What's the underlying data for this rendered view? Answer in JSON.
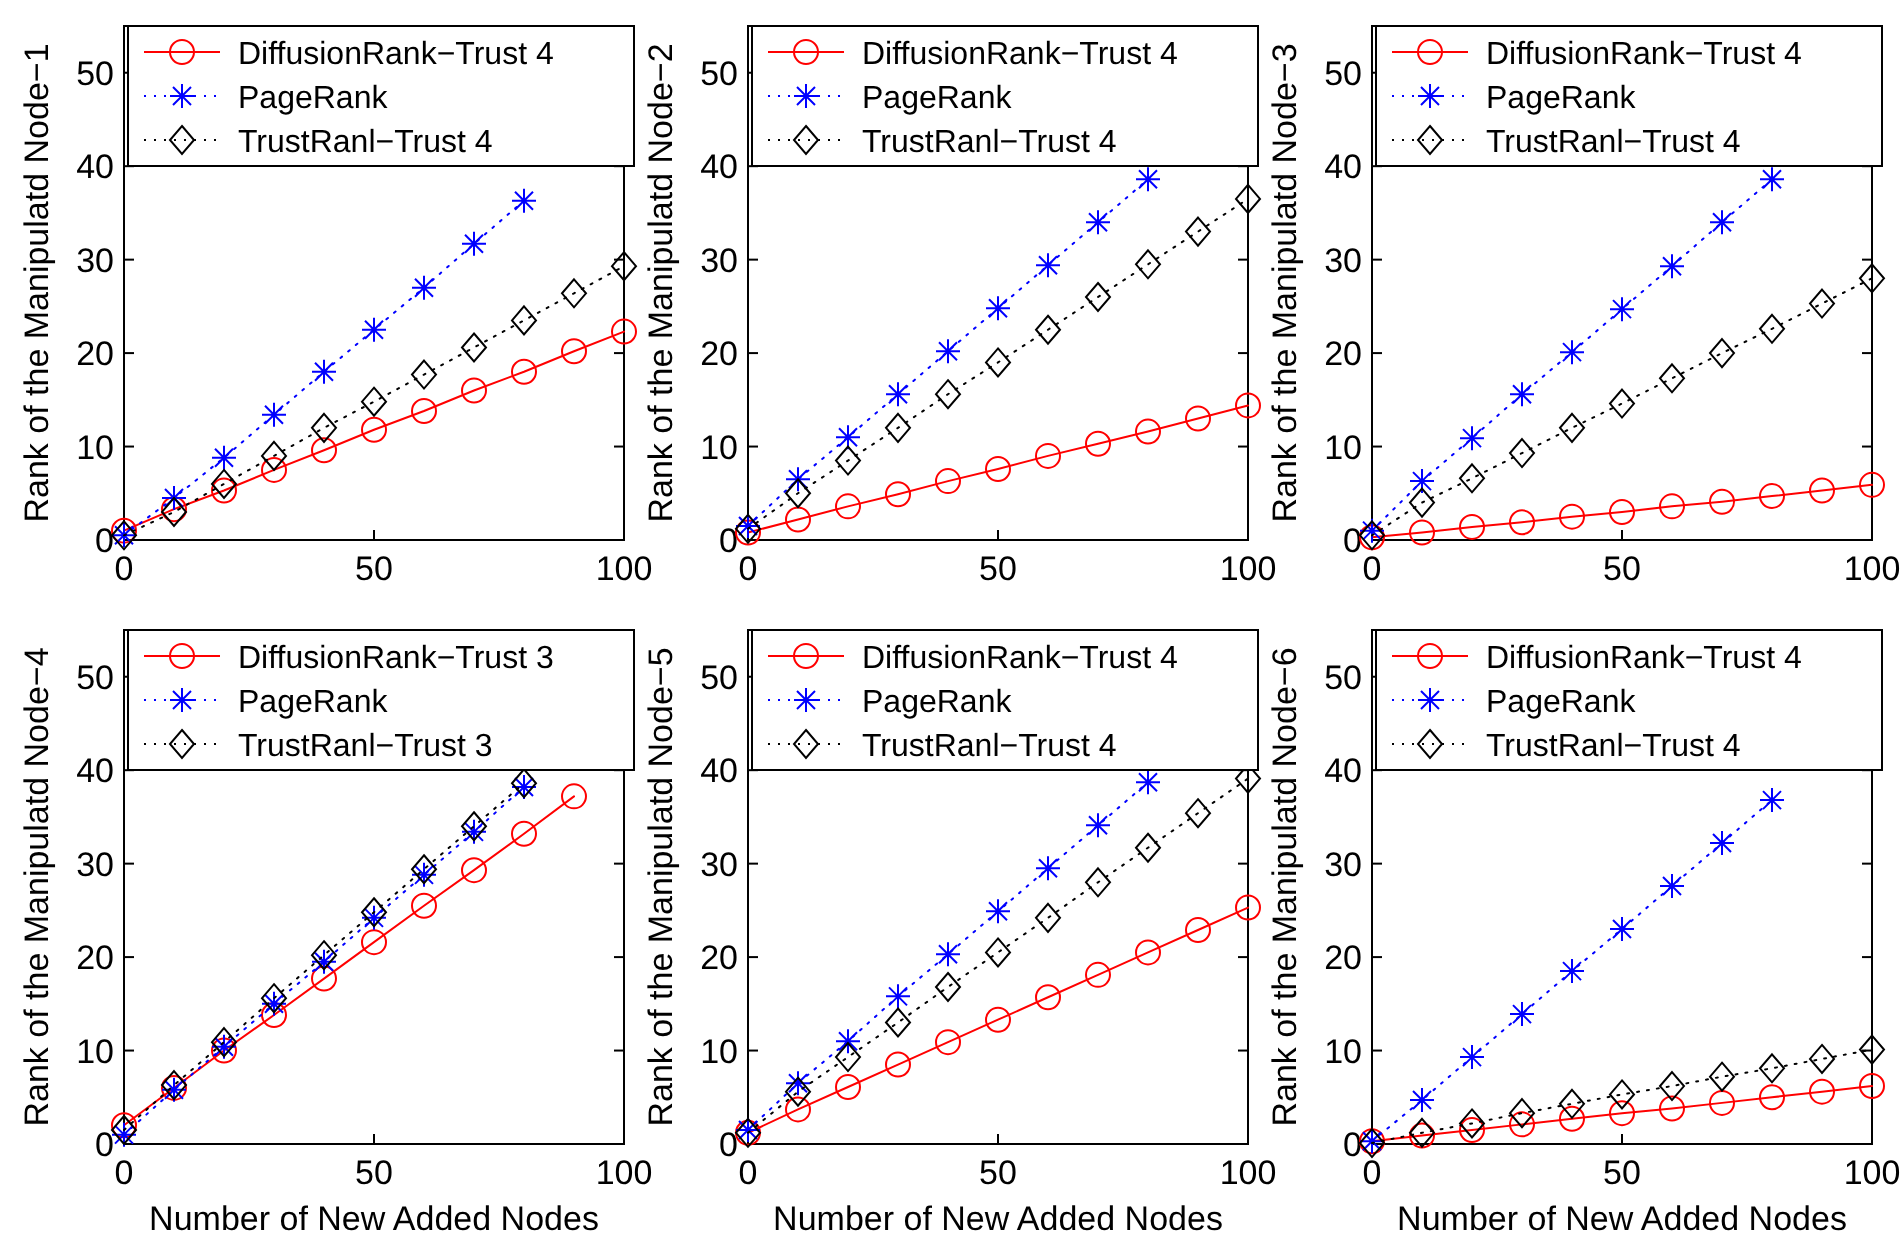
{
  "chart_data": [
    {
      "type": "line",
      "ylabel": "Rank of the Manipulatd Node−1",
      "x": [
        0,
        10,
        20,
        30,
        40,
        50,
        60,
        70,
        80,
        90,
        100
      ],
      "xlim": [
        0,
        100
      ],
      "xticks": [
        0,
        50,
        100
      ],
      "ylim": [
        0,
        55
      ],
      "yticks": [
        0,
        10,
        20,
        30,
        40,
        50
      ],
      "legend": "top",
      "series": [
        {
          "name": "DiffusionRank−Trust 4",
          "color": "#ff0000",
          "marker": "circle",
          "line_style": "solid",
          "values": [
            1,
            3.3,
            5.3,
            7.5,
            9.6,
            11.8,
            13.8,
            16,
            18,
            20.2,
            22.3
          ]
        },
        {
          "name": "PageRank",
          "color": "#0000ff",
          "marker": "cross",
          "line_style": "dotted",
          "values": [
            0.5,
            4.5,
            8.8,
            13.4,
            18,
            22.5,
            27,
            31.7,
            36.3,
            null,
            null
          ]
        },
        {
          "name": "TrustRanl−Trust 4",
          "color": "#000000",
          "marker": "diamond",
          "line_style": "dotted",
          "values": [
            0.5,
            3,
            6,
            9,
            12,
            14.8,
            17.7,
            20.6,
            23.5,
            26.4,
            29.3
          ]
        }
      ]
    },
    {
      "type": "line",
      "ylabel": "Rank of the Manipulatd Node−2",
      "x": [
        0,
        10,
        20,
        30,
        40,
        50,
        60,
        70,
        80,
        90,
        100
      ],
      "xlim": [
        0,
        100
      ],
      "xticks": [
        0,
        50,
        100
      ],
      "ylim": [
        0,
        55
      ],
      "yticks": [
        0,
        10,
        20,
        30,
        40,
        50
      ],
      "legend": "top",
      "series": [
        {
          "name": "DiffusionRank−Trust 4",
          "color": "#ff0000",
          "marker": "circle",
          "line_style": "solid",
          "values": [
            0.8,
            2.2,
            3.6,
            4.9,
            6.3,
            7.6,
            9,
            10.3,
            11.6,
            13,
            14.4
          ]
        },
        {
          "name": "PageRank",
          "color": "#0000ff",
          "marker": "cross",
          "line_style": "dotted",
          "values": [
            1.5,
            6.5,
            11,
            15.6,
            20.2,
            24.8,
            29.4,
            34,
            38.6,
            null,
            null
          ]
        },
        {
          "name": "TrustRanl−Trust 4",
          "color": "#000000",
          "marker": "diamond",
          "line_style": "dotted",
          "values": [
            1.2,
            5,
            8.5,
            12,
            15.6,
            19,
            22.5,
            26,
            29.5,
            33,
            36.5
          ]
        }
      ]
    },
    {
      "type": "line",
      "ylabel": "Rank of the Manipulatd Node−3",
      "x": [
        0,
        10,
        20,
        30,
        40,
        50,
        60,
        70,
        80,
        90,
        100
      ],
      "xlim": [
        0,
        100
      ],
      "xticks": [
        0,
        50,
        100
      ],
      "ylim": [
        0,
        55
      ],
      "yticks": [
        0,
        10,
        20,
        30,
        40,
        50
      ],
      "legend": "top",
      "series": [
        {
          "name": "DiffusionRank−Trust 4",
          "color": "#ff0000",
          "marker": "circle",
          "line_style": "solid",
          "values": [
            0.3,
            0.8,
            1.4,
            1.9,
            2.5,
            3,
            3.6,
            4.1,
            4.7,
            5.3,
            5.9
          ]
        },
        {
          "name": "PageRank",
          "color": "#0000ff",
          "marker": "cross",
          "line_style": "dotted",
          "values": [
            1,
            6.3,
            10.9,
            15.6,
            20.1,
            24.7,
            29.3,
            34,
            38.6,
            null,
            null
          ]
        },
        {
          "name": "TrustRanl−Trust 4",
          "color": "#000000",
          "marker": "diamond",
          "line_style": "dotted",
          "values": [
            0.5,
            4,
            6.6,
            9.3,
            12,
            14.6,
            17.3,
            20,
            22.6,
            25.3,
            28
          ]
        }
      ]
    },
    {
      "type": "line",
      "xlabel": "Number of New Added Nodes",
      "ylabel": "Rank of the Manipulatd Node−4",
      "x": [
        0,
        10,
        20,
        30,
        40,
        50,
        60,
        70,
        80,
        90
      ],
      "xlim": [
        0,
        100
      ],
      "xticks": [
        0,
        50,
        100
      ],
      "ylim": [
        0,
        55
      ],
      "yticks": [
        0,
        10,
        20,
        30,
        40,
        50
      ],
      "legend": "top",
      "series": [
        {
          "name": "DiffusionRank−Trust 3",
          "color": "#ff0000",
          "marker": "circle",
          "line_style": "solid",
          "values": [
            2,
            6,
            10,
            13.8,
            17.7,
            21.6,
            25.5,
            29.3,
            33.2,
            37.2
          ]
        },
        {
          "name": "PageRank",
          "color": "#0000ff",
          "marker": "cross",
          "line_style": "dotted",
          "values": [
            1,
            5.8,
            10.4,
            15,
            19.5,
            24.2,
            28.8,
            33.4,
            38.2,
            null
          ]
        },
        {
          "name": "TrustRanl−Trust 3",
          "color": "#000000",
          "marker": "diamond",
          "line_style": "dotted",
          "values": [
            1.5,
            6.3,
            10.9,
            15.6,
            20.2,
            24.8,
            29.4,
            34,
            38.6,
            null
          ]
        }
      ]
    },
    {
      "type": "line",
      "xlabel": "Number of New Added Nodes",
      "ylabel": "Rank of the Manipulatd Node−5",
      "x": [
        0,
        10,
        20,
        30,
        40,
        50,
        60,
        70,
        80,
        90,
        100
      ],
      "xlim": [
        0,
        100
      ],
      "xticks": [
        0,
        50,
        100
      ],
      "ylim": [
        0,
        55
      ],
      "yticks": [
        0,
        10,
        20,
        30,
        40,
        50
      ],
      "legend": "top",
      "series": [
        {
          "name": "DiffusionRank−Trust 4",
          "color": "#ff0000",
          "marker": "circle",
          "line_style": "solid",
          "values": [
            1.2,
            3.7,
            6.1,
            8.5,
            10.9,
            13.3,
            15.7,
            18.1,
            20.5,
            22.9,
            25.3
          ]
        },
        {
          "name": "PageRank",
          "color": "#0000ff",
          "marker": "cross",
          "line_style": "dotted",
          "values": [
            1.5,
            6.5,
            11,
            15.8,
            20.3,
            24.9,
            29.5,
            34.1,
            38.7,
            null,
            null
          ]
        },
        {
          "name": "TrustRanl−Trust 4",
          "color": "#000000",
          "marker": "diamond",
          "line_style": "dotted",
          "values": [
            1.2,
            5.6,
            9.3,
            13,
            16.8,
            20.5,
            24.2,
            28,
            31.7,
            35.4,
            39.1
          ]
        }
      ]
    },
    {
      "type": "line",
      "xlabel": "Number of New Added Nodes",
      "ylabel": "Rank of the Manipulatd Node−6",
      "x": [
        0,
        10,
        20,
        30,
        40,
        50,
        60,
        70,
        80,
        90,
        100
      ],
      "xlim": [
        0,
        100
      ],
      "xticks": [
        0,
        50,
        100
      ],
      "ylim": [
        0,
        55
      ],
      "yticks": [
        0,
        10,
        20,
        30,
        40,
        50
      ],
      "legend": "top",
      "series": [
        {
          "name": "DiffusionRank−Trust 4",
          "color": "#ff0000",
          "marker": "circle",
          "line_style": "solid",
          "values": [
            0.3,
            0.9,
            1.5,
            2.1,
            2.7,
            3.3,
            3.8,
            4.4,
            5,
            5.6,
            6.2
          ]
        },
        {
          "name": "PageRank",
          "color": "#0000ff",
          "marker": "cross",
          "line_style": "dotted",
          "values": [
            0.3,
            4.7,
            9.3,
            13.9,
            18.5,
            23,
            27.6,
            32.2,
            36.8,
            null,
            null
          ]
        },
        {
          "name": "TrustRanl−Trust 4",
          "color": "#000000",
          "marker": "diamond",
          "line_style": "dotted",
          "values": [
            0.1,
            1.2,
            2.2,
            3.3,
            4.3,
            5.3,
            6.2,
            7.2,
            8.1,
            9.1,
            10.1
          ]
        }
      ]
    }
  ]
}
